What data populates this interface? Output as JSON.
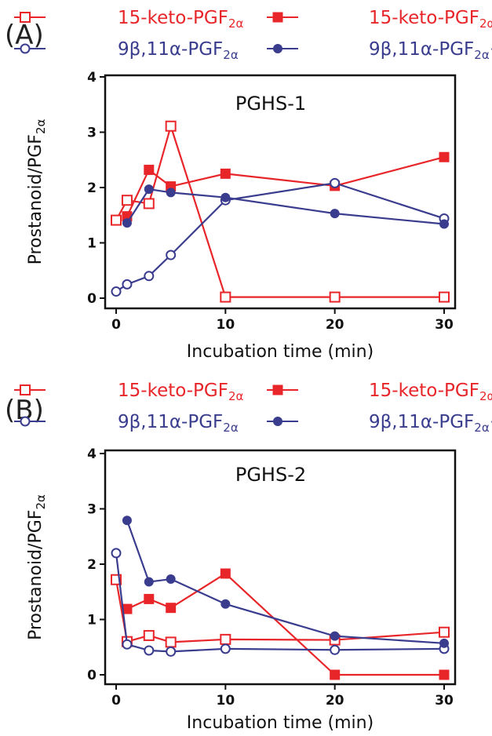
{
  "colors": {
    "red": "#e8262a",
    "blue": "#3a3c8e",
    "axis": "#111111"
  },
  "chart_data": [
    {
      "panel_label": "(A)",
      "type": "line",
      "title": "PGHS-1",
      "xlabel": "Incubation time (min)",
      "ylabel": {
        "main": "Prostanoid/PGF",
        "sub": "2α"
      },
      "xlim": [
        0,
        30
      ],
      "ylim": [
        0,
        4
      ],
      "xticks": [
        0,
        10,
        20,
        30
      ],
      "yticks": [
        0,
        1,
        2,
        3,
        4
      ],
      "series": [
        {
          "key": "s1",
          "name": {
            "main": "15-keto-PGF",
            "sub": "2α",
            "suffix": ""
          },
          "color": "#e8262a",
          "marker": "open-square",
          "x": [
            0,
            1,
            3,
            5,
            10,
            20,
            30
          ],
          "y": [
            1.41,
            1.77,
            1.71,
            3.11,
            0.02,
            0.02,
            0.02
          ]
        },
        {
          "key": "s2",
          "name": {
            "main": "15-keto-PGF",
            "sub": "2α",
            "suffix": "+"
          },
          "color": "#e8262a",
          "marker": "filled-square",
          "x": [
            1,
            3,
            5,
            10,
            20,
            30
          ],
          "y": [
            1.48,
            2.32,
            2.02,
            2.25,
            2.03,
            2.55
          ]
        },
        {
          "key": "s3",
          "name": {
            "main": "9β,11α-PGF",
            "sub": "2α",
            "suffix": ""
          },
          "color": "#3a3c8e",
          "marker": "open-circle",
          "x": [
            0,
            1,
            3,
            5,
            10,
            20,
            30
          ],
          "y": [
            0.12,
            0.25,
            0.4,
            0.78,
            1.77,
            2.08,
            1.44
          ]
        },
        {
          "key": "s4",
          "name": {
            "main": "9β,11α-PGF",
            "sub": "2α",
            "suffix": "+"
          },
          "color": "#3a3c8e",
          "marker": "filled-circle",
          "x": [
            1,
            3,
            5,
            10,
            20,
            30
          ],
          "y": [
            1.36,
            1.97,
            1.91,
            1.82,
            1.53,
            1.34
          ]
        }
      ]
    },
    {
      "panel_label": "(B)",
      "type": "line",
      "title": "PGHS-2",
      "xlabel": "Incubation time (min)",
      "ylabel": {
        "main": "Prostanoid/PGF",
        "sub": "2α"
      },
      "xlim": [
        0,
        30
      ],
      "ylim": [
        0,
        4
      ],
      "xticks": [
        0,
        10,
        20,
        30
      ],
      "yticks": [
        0,
        1,
        2,
        3,
        4
      ],
      "series": [
        {
          "key": "s1",
          "name": {
            "main": "15-keto-PGF",
            "sub": "2α",
            "suffix": ""
          },
          "color": "#e8262a",
          "marker": "open-square",
          "x": [
            0,
            1,
            3,
            5,
            10,
            20,
            30
          ],
          "y": [
            1.72,
            0.6,
            0.71,
            0.59,
            0.64,
            0.63,
            0.77
          ]
        },
        {
          "key": "s2",
          "name": {
            "main": "15-keto-PGF",
            "sub": "2α",
            "suffix": "+"
          },
          "color": "#e8262a",
          "marker": "filled-square",
          "x": [
            1,
            3,
            5,
            10,
            20,
            30
          ],
          "y": [
            1.19,
            1.37,
            1.21,
            1.83,
            0.0,
            0.0
          ]
        },
        {
          "key": "s3",
          "name": {
            "main": "9β,11α-PGF",
            "sub": "2α",
            "suffix": ""
          },
          "color": "#3a3c8e",
          "marker": "open-circle",
          "x": [
            0,
            1,
            3,
            5,
            10,
            20,
            30
          ],
          "y": [
            2.2,
            0.55,
            0.44,
            0.42,
            0.47,
            0.45,
            0.47
          ]
        },
        {
          "key": "s4",
          "name": {
            "main": "9β,11α-PGF",
            "sub": "2α",
            "suffix": "+"
          },
          "color": "#3a3c8e",
          "marker": "filled-circle",
          "x": [
            1,
            3,
            5,
            10,
            20,
            30
          ],
          "y": [
            2.79,
            1.68,
            1.73,
            1.28,
            0.7,
            0.57
          ]
        }
      ]
    }
  ]
}
